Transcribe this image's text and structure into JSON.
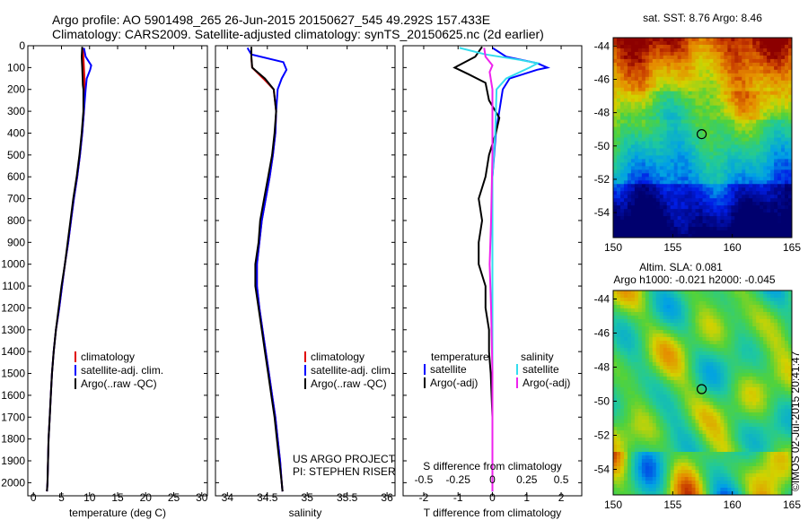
{
  "title_line1": "Argo profile: AO 5901498_265 26-Jun-2015 20150627_545 49.292S 157.433E",
  "title_line2": "Climatology: CARS2009. Satellite-adjusted climatology: synTS_20150625.nc (2d earlier)",
  "colors": {
    "climatology": "#e00000",
    "satellite": "#0000ff",
    "argo": "#000000",
    "sal_satellite": "#33ddee",
    "sal_argo": "#ee22ee"
  },
  "chart_data": [
    {
      "type": "line",
      "id": "temperature",
      "xlabel": "temperature (deg C)",
      "ylabel": "",
      "xlim": [
        -1,
        31
      ],
      "ylim": [
        2060,
        0
      ],
      "xticks": [
        0,
        5,
        10,
        15,
        20,
        25,
        30
      ],
      "yticks": [
        0,
        100,
        200,
        300,
        400,
        500,
        600,
        700,
        800,
        900,
        1000,
        1100,
        1200,
        1300,
        1400,
        1500,
        1600,
        1700,
        1800,
        1900,
        2000
      ],
      "legend": [
        "climatology",
        "satellite-adj. clim.",
        "Argo(..raw -QC)"
      ],
      "series": [
        {
          "name": "climatology",
          "color": "#e00000",
          "points": [
            [
              8.8,
              10
            ],
            [
              8.9,
              50
            ],
            [
              9.0,
              100
            ],
            [
              9.1,
              150
            ],
            [
              9.1,
              200
            ],
            [
              9.0,
              300
            ],
            [
              8.7,
              400
            ],
            [
              8.3,
              500
            ],
            [
              7.8,
              600
            ],
            [
              7.2,
              700
            ],
            [
              6.7,
              800
            ],
            [
              6.2,
              900
            ],
            [
              5.6,
              1000
            ],
            [
              5.1,
              1100
            ],
            [
              4.6,
              1200
            ],
            [
              4.0,
              1300
            ],
            [
              3.6,
              1400
            ],
            [
              3.3,
              1500
            ],
            [
              3.1,
              1600
            ],
            [
              2.9,
              1700
            ],
            [
              2.7,
              1800
            ],
            [
              2.6,
              1900
            ],
            [
              2.5,
              2000
            ],
            [
              2.4,
              2040
            ]
          ]
        },
        {
          "name": "satellite-adj. clim.",
          "color": "#0000ff",
          "points": [
            [
              9.0,
              10
            ],
            [
              9.3,
              50
            ],
            [
              10.3,
              90
            ],
            [
              10.1,
              110
            ],
            [
              9.5,
              150
            ],
            [
              9.3,
              200
            ],
            [
              9.0,
              300
            ],
            [
              8.7,
              400
            ],
            [
              8.3,
              500
            ],
            [
              7.8,
              600
            ],
            [
              7.2,
              700
            ],
            [
              6.7,
              800
            ],
            [
              6.2,
              900
            ],
            [
              5.6,
              1000
            ],
            [
              5.1,
              1100
            ],
            [
              4.6,
              1200
            ],
            [
              4.0,
              1300
            ],
            [
              3.6,
              1400
            ],
            [
              3.3,
              1500
            ],
            [
              3.1,
              1600
            ],
            [
              2.9,
              1700
            ],
            [
              2.7,
              1800
            ],
            [
              2.6,
              1900
            ],
            [
              2.5,
              2000
            ],
            [
              2.4,
              2040
            ]
          ]
        },
        {
          "name": "Argo(..raw -QC)",
          "color": "#000000",
          "points": [
            [
              8.7,
              5
            ],
            [
              8.6,
              50
            ],
            [
              8.7,
              100
            ],
            [
              8.8,
              180
            ],
            [
              8.9,
              200
            ],
            [
              8.9,
              300
            ],
            [
              8.6,
              400
            ],
            [
              8.2,
              500
            ],
            [
              7.7,
              600
            ],
            [
              7.1,
              700
            ],
            [
              6.6,
              800
            ],
            [
              6.1,
              900
            ],
            [
              5.6,
              1000
            ],
            [
              5.0,
              1100
            ],
            [
              4.5,
              1200
            ],
            [
              4.0,
              1300
            ],
            [
              3.6,
              1400
            ],
            [
              3.3,
              1500
            ],
            [
              3.1,
              1600
            ],
            [
              2.9,
              1700
            ],
            [
              2.7,
              1800
            ],
            [
              2.6,
              1900
            ],
            [
              2.5,
              2000
            ],
            [
              2.4,
              2040
            ]
          ]
        }
      ]
    },
    {
      "type": "line",
      "id": "salinity",
      "xlabel": "salinity",
      "ylabel": "",
      "xlim": [
        33.85,
        36.1
      ],
      "ylim": [
        2060,
        0
      ],
      "xticks": [
        34,
        34.5,
        35,
        35.5,
        36
      ],
      "legend": [
        "climatology",
        "satellite-adj. clim.",
        "Argo(..raw -QC)"
      ],
      "annotation": [
        "US ARGO PROJECT",
        "PI: STEPHEN RISER"
      ],
      "series": [
        {
          "name": "climatology",
          "color": "#e00000",
          "points": [
            [
              34.3,
              10
            ],
            [
              34.3,
              60
            ],
            [
              34.31,
              100
            ],
            [
              34.45,
              150
            ],
            [
              34.58,
              200
            ],
            [
              34.61,
              300
            ],
            [
              34.6,
              400
            ],
            [
              34.57,
              500
            ],
            [
              34.53,
              600
            ],
            [
              34.48,
              700
            ],
            [
              34.43,
              800
            ],
            [
              34.4,
              900
            ],
            [
              34.37,
              1000
            ],
            [
              34.37,
              1100
            ],
            [
              34.4,
              1200
            ],
            [
              34.44,
              1300
            ],
            [
              34.48,
              1400
            ],
            [
              34.52,
              1500
            ],
            [
              34.56,
              1600
            ],
            [
              34.6,
              1700
            ],
            [
              34.63,
              1800
            ],
            [
              34.66,
              1900
            ],
            [
              34.68,
              2000
            ],
            [
              34.69,
              2040
            ]
          ]
        },
        {
          "name": "satellite-adj. clim.",
          "color": "#0000ff",
          "points": [
            [
              34.25,
              10
            ],
            [
              34.3,
              40
            ],
            [
              34.7,
              75
            ],
            [
              34.74,
              110
            ],
            [
              34.68,
              150
            ],
            [
              34.63,
              200
            ],
            [
              34.61,
              300
            ],
            [
              34.6,
              400
            ],
            [
              34.57,
              500
            ],
            [
              34.53,
              600
            ],
            [
              34.48,
              700
            ],
            [
              34.43,
              800
            ],
            [
              34.4,
              900
            ],
            [
              34.37,
              1000
            ],
            [
              34.37,
              1100
            ],
            [
              34.4,
              1200
            ],
            [
              34.44,
              1300
            ],
            [
              34.48,
              1400
            ],
            [
              34.52,
              1500
            ],
            [
              34.56,
              1600
            ],
            [
              34.6,
              1700
            ],
            [
              34.63,
              1800
            ],
            [
              34.66,
              1900
            ],
            [
              34.68,
              2000
            ],
            [
              34.69,
              2040
            ]
          ]
        },
        {
          "name": "Argo(..raw -QC)",
          "color": "#000000",
          "points": [
            [
              34.3,
              5
            ],
            [
              34.3,
              50
            ],
            [
              34.31,
              100
            ],
            [
              34.47,
              150
            ],
            [
              34.58,
              200
            ],
            [
              34.61,
              300
            ],
            [
              34.59,
              400
            ],
            [
              34.56,
              500
            ],
            [
              34.51,
              600
            ],
            [
              34.46,
              700
            ],
            [
              34.41,
              800
            ],
            [
              34.39,
              900
            ],
            [
              34.35,
              1000
            ],
            [
              34.35,
              1100
            ],
            [
              34.39,
              1200
            ],
            [
              34.43,
              1300
            ],
            [
              34.47,
              1400
            ],
            [
              34.51,
              1500
            ],
            [
              34.55,
              1600
            ],
            [
              34.59,
              1700
            ],
            [
              34.62,
              1800
            ],
            [
              34.65,
              1900
            ],
            [
              34.68,
              2000
            ],
            [
              34.69,
              2040
            ]
          ]
        }
      ]
    },
    {
      "type": "line",
      "id": "differences",
      "xlabel": "T difference from climatology",
      "xlabel2": "S difference from climatology",
      "xlim": [
        -2.6,
        2.6
      ],
      "ylim": [
        2060,
        0
      ],
      "xticks": [
        -2,
        -1,
        0,
        1,
        2
      ],
      "s_ticks": [
        -0.5,
        -0.25,
        0,
        0.25,
        0.5
      ],
      "s_scale": 4,
      "legend_temperature": {
        "title": "temperature",
        "items": [
          "satellite",
          "Argo(-adj)"
        ]
      },
      "legend_salinity": {
        "title": "salinity",
        "items": [
          "satellite",
          "Argo(-adj)"
        ]
      },
      "series": [
        {
          "name": "temperature satellite",
          "color": "#0000ff",
          "points": [
            [
              0,
              10
            ],
            [
              0.4,
              50
            ],
            [
              1.3,
              80
            ],
            [
              1.6,
              100
            ],
            [
              1.3,
              110
            ],
            [
              0.5,
              150
            ],
            [
              0.3,
              200
            ],
            [
              0.1,
              400
            ],
            [
              0,
              600
            ],
            [
              0,
              2040
            ]
          ]
        },
        {
          "name": "temperature Argo(-adj)",
          "color": "#000000",
          "points": [
            [
              -0.3,
              5
            ],
            [
              -0.5,
              50
            ],
            [
              -1.1,
              100
            ],
            [
              -0.7,
              130
            ],
            [
              -0.2,
              170
            ],
            [
              -0.1,
              250
            ],
            [
              0.2,
              330
            ],
            [
              0.1,
              400
            ],
            [
              -0.1,
              500
            ],
            [
              -0.2,
              600
            ],
            [
              -0.4,
              700
            ],
            [
              -0.3,
              800
            ],
            [
              -0.4,
              900
            ],
            [
              -0.4,
              1000
            ],
            [
              -0.2,
              1100
            ],
            [
              -0.2,
              1200
            ],
            [
              -0.1,
              1300
            ],
            [
              -0.1,
              1400
            ],
            [
              -0.05,
              1500
            ],
            [
              0,
              1700
            ],
            [
              0,
              1900
            ],
            [
              0,
              2040
            ]
          ]
        },
        {
          "name": "salinity satellite",
          "color": "#33ddee",
          "points": [
            [
              -0.24,
              10
            ],
            [
              -0.05,
              40
            ],
            [
              0.2,
              65
            ],
            [
              0.33,
              80
            ],
            [
              0.27,
              100
            ],
            [
              0.1,
              150
            ],
            [
              0.03,
              200
            ],
            [
              0.02,
              400
            ],
            [
              0.0,
              600
            ],
            [
              0,
              2040
            ]
          ]
        },
        {
          "name": "salinity Argo(-adj)",
          "color": "#ee22ee",
          "points": [
            [
              -0.06,
              10
            ],
            [
              -0.05,
              50
            ],
            [
              0.0,
              90
            ],
            [
              -0.02,
              120
            ],
            [
              0.0,
              200
            ],
            [
              0.0,
              500
            ],
            [
              -0.01,
              800
            ],
            [
              -0.02,
              1000
            ],
            [
              -0.01,
              1200
            ],
            [
              0,
              1500
            ],
            [
              0,
              2040
            ]
          ]
        }
      ]
    },
    {
      "type": "heatmap",
      "id": "sst_map",
      "title": "sat. SST: 8.76 Argo: 8.46",
      "xlim": [
        150,
        165
      ],
      "ylim": [
        -55.5,
        -43.5
      ],
      "xticks": [
        150,
        155,
        160,
        165
      ],
      "yticks": [
        -44,
        -46,
        -48,
        -50,
        -52,
        -54
      ],
      "marker": [
        157.43,
        -49.29
      ]
    },
    {
      "type": "heatmap",
      "id": "sla_map",
      "title": "Altim. SLA: 0.081",
      "subtitle": "Argo h1000: -0.021 h2000: -0.045",
      "xlim": [
        150,
        165
      ],
      "ylim": [
        -55.5,
        -43.5
      ],
      "xticks": [
        150,
        155,
        160,
        165
      ],
      "yticks": [
        -44,
        -46,
        -48,
        -50,
        -52,
        -54
      ],
      "marker": [
        157.43,
        -49.29
      ],
      "side_label": "©IMOS 02-Jul-2015 20:41:47"
    }
  ]
}
